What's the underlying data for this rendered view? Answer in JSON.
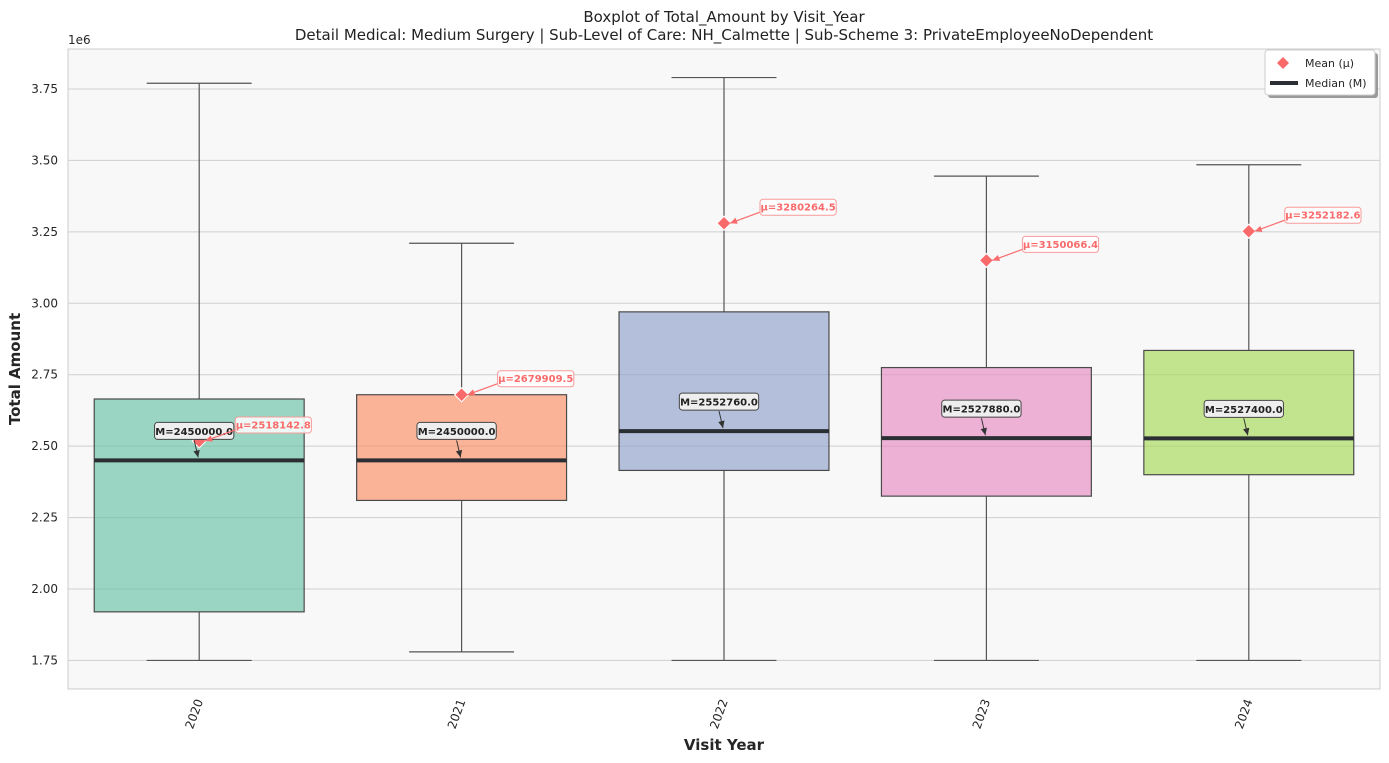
{
  "chart_data": {
    "type": "box",
    "title": "Boxplot of Total_Amount by Visit_Year",
    "subtitle": "Detail Medical: Medium Surgery | Sub-Level of Care: NH_Calmette | Sub-Scheme 3: PrivateEmployeeNoDependent",
    "xlabel": "Visit Year",
    "ylabel": "Total Amount",
    "y_offset_label": "1e6",
    "ylim": [
      1650000,
      3890000
    ],
    "yticks": [
      1750000,
      2000000,
      2250000,
      2500000,
      2750000,
      3000000,
      3250000,
      3500000,
      3750000
    ],
    "ytick_labels": [
      "1.75",
      "2.00",
      "2.25",
      "2.50",
      "2.75",
      "3.00",
      "3.25",
      "3.50",
      "3.75"
    ],
    "grid": true,
    "legend_position": "top-right",
    "legend": [
      {
        "label": "Mean (μ)",
        "marker": "diamond",
        "color": "#f96b6b"
      },
      {
        "label": "Median (M)",
        "marker": "line",
        "color": "#2b2f33"
      }
    ],
    "categories": [
      "2020",
      "2021",
      "2022",
      "2023",
      "2024"
    ],
    "boxes": [
      {
        "category": "2020",
        "whisker_low": 1750000,
        "q1": 1920000,
        "median": 2450000,
        "q3": 2665000,
        "whisker_high": 3770000,
        "mean": 2518142.8,
        "color": "#66c2a5",
        "median_label": "M=2450000.0",
        "mean_label": "μ=2518142.8"
      },
      {
        "category": "2021",
        "whisker_low": 1780000,
        "q1": 2310000,
        "median": 2450000,
        "q3": 2680000,
        "whisker_high": 3210000,
        "mean": 2679909.5,
        "color": "#fc8d62",
        "median_label": "M=2450000.0",
        "mean_label": "μ=2679909.5"
      },
      {
        "category": "2022",
        "whisker_low": 1750000,
        "q1": 2415000,
        "median": 2552760,
        "q3": 2970000,
        "whisker_high": 3790000,
        "mean": 3280264.5,
        "color": "#8da0cb",
        "median_label": "M=2552760.0",
        "mean_label": "μ=3280264.5"
      },
      {
        "category": "2023",
        "whisker_low": 1750000,
        "q1": 2325000,
        "median": 2527880,
        "q3": 2775000,
        "whisker_high": 3445000,
        "mean": 3150066.4,
        "color": "#e78ac3",
        "median_label": "M=2527880.0",
        "mean_label": "μ=3150066.4"
      },
      {
        "category": "2024",
        "whisker_low": 1750000,
        "q1": 2400000,
        "median": 2527400,
        "q3": 2835000,
        "whisker_high": 3485000,
        "mean": 3252182.6,
        "color": "#a6d854",
        "median_label": "M=2527400.0",
        "mean_label": "μ=3252182.6"
      }
    ]
  }
}
